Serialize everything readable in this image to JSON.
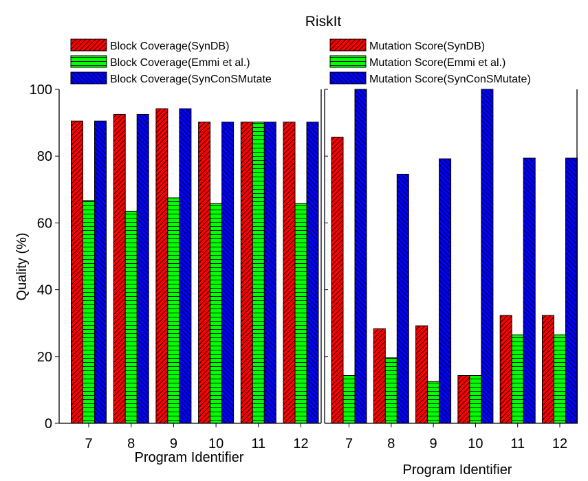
{
  "chart_data": {
    "type": "bar",
    "title": "RiskIt",
    "ylabel": "Quality (%)",
    "ylim": [
      0,
      100
    ],
    "yticks": [
      0,
      20,
      40,
      60,
      80,
      100
    ],
    "grid": false,
    "legend_placement": "top",
    "panels": [
      {
        "name": "Block Coverage",
        "xlabel": "Program Identifier",
        "categories": [
          "7",
          "8",
          "9",
          "10",
          "11",
          "12"
        ],
        "series": [
          {
            "name": "Block Coverage(SynDB)",
            "legend_text": "Block Coverage(SynDB)",
            "color": "#ff0000",
            "pattern": "diag-right",
            "values": [
              90.5,
              92.5,
              94.2,
              90.2,
              90.2,
              90.2
            ]
          },
          {
            "name": "Block Coverage(Emmi et al.)",
            "legend_text": "Block Coverage(Emmi et al.)",
            "color": "#00ff00",
            "pattern": "horizontal",
            "values": [
              66.7,
              63.5,
              67.5,
              65.8,
              90.2,
              65.8
            ]
          },
          {
            "name": "Block Coverage(SynConSMutate)",
            "legend_text": "Block Coverage(SynConSMutate",
            "color": "#0000ff",
            "pattern": "diag-left",
            "values": [
              90.5,
              92.5,
              94.2,
              90.2,
              90.2,
              90.2
            ]
          }
        ]
      },
      {
        "name": "Mutation Score",
        "xlabel": "Program Identifier",
        "categories": [
          "7",
          "8",
          "9",
          "10",
          "11",
          "12"
        ],
        "series": [
          {
            "name": "Mutation Score(SynDB)",
            "legend_text": "Mutation Score(SynDB)",
            "color": "#ff0000",
            "pattern": "diag-right",
            "values": [
              85.7,
              28.3,
              29.2,
              14.3,
              32.3,
              32.3
            ]
          },
          {
            "name": "Mutation Score(Emmi et al.)",
            "legend_text": "Mutation Score(Emmi et al.)",
            "color": "#00ff00",
            "pattern": "horizontal",
            "values": [
              14.3,
              19.6,
              12.5,
              14.3,
              26.5,
              26.5
            ]
          },
          {
            "name": "Mutation Score(SynConSMutate)",
            "legend_text": "Mutation Score(SynConSMutate)",
            "color": "#0000ff",
            "pattern": "diag-left",
            "values": [
              100,
              74.6,
              79.2,
              100,
              79.4,
              79.4
            ]
          }
        ]
      }
    ]
  }
}
